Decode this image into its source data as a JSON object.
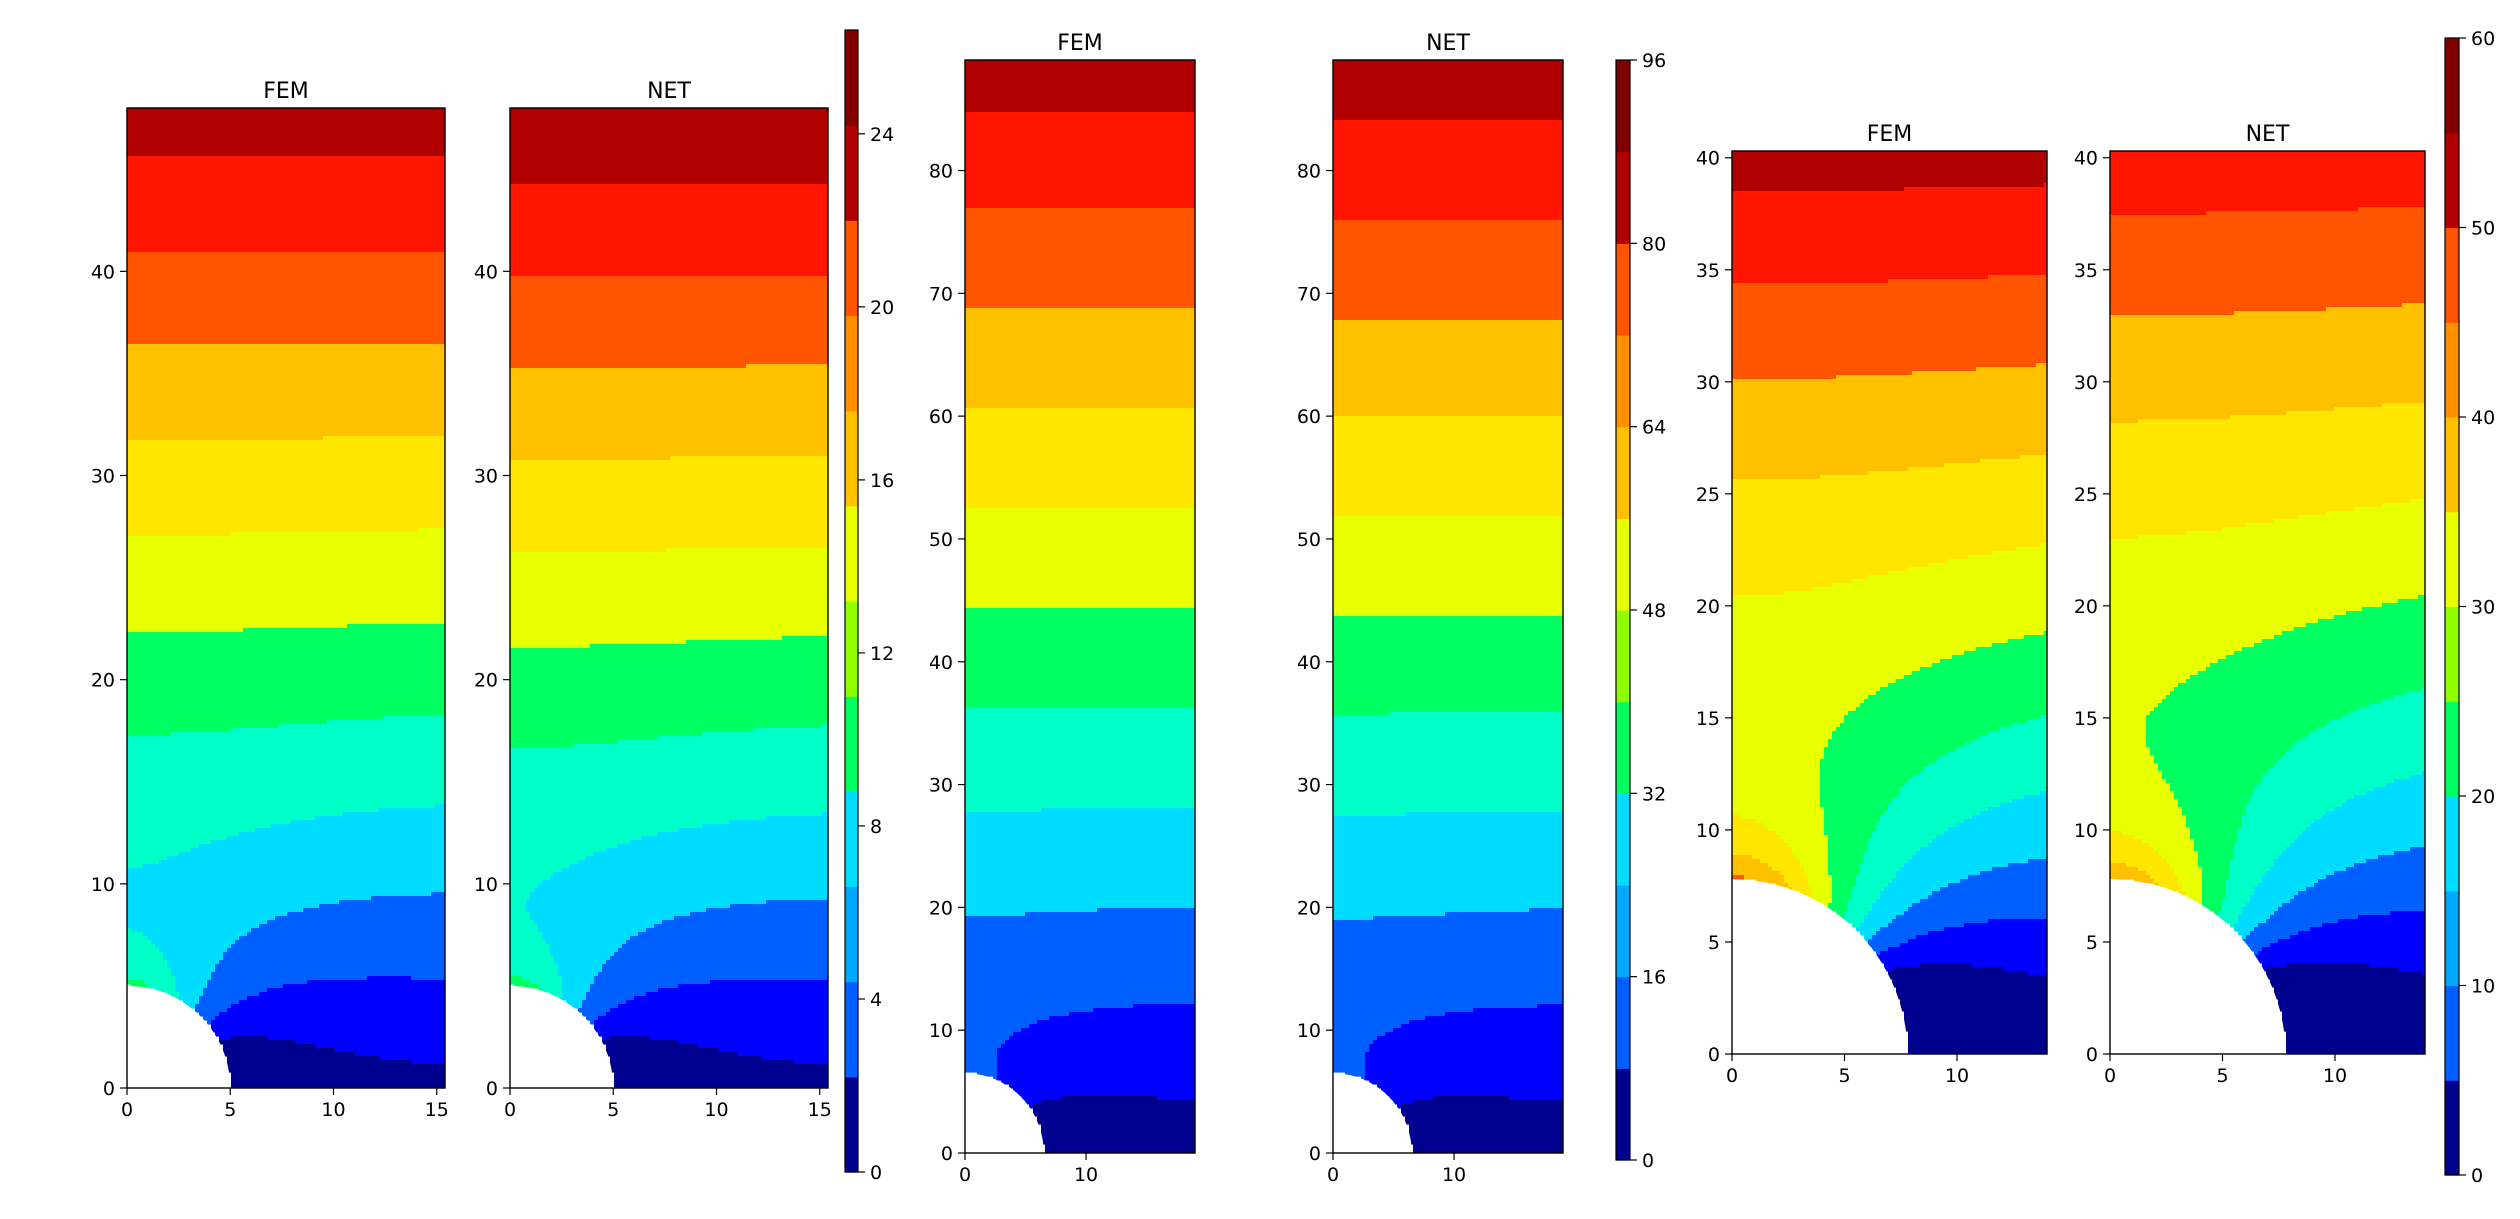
{
  "chart_data": [
    {
      "type": "heatmap",
      "group": 1,
      "title": "FEM",
      "xlim": [
        0,
        15.4
      ],
      "ylim": [
        0,
        48
      ],
      "x_ticks": [
        "0",
        "5",
        "10",
        "15"
      ],
      "y_ticks": [
        "0",
        "10",
        "20",
        "30",
        "40"
      ],
      "hole_radius": 5,
      "vmin": 0,
      "vmax": 26.4,
      "level_step": 2.2,
      "field": {
        "bottom": 2,
        "top": 25.3,
        "hole_peak": 9.3,
        "decay": 17
      }
    },
    {
      "type": "heatmap",
      "group": 1,
      "title": "NET",
      "xlim": [
        0,
        15.4
      ],
      "ylim": [
        0,
        48
      ],
      "x_ticks": [
        "0",
        "5",
        "10",
        "15"
      ],
      "y_ticks": [
        "0",
        "10",
        "20",
        "30",
        "40"
      ],
      "hole_radius": 5,
      "vmin": 0,
      "vmax": 26.4,
      "level_step": 2.2,
      "field": {
        "bottom": 2,
        "top": 26,
        "hole_peak": 9.6,
        "decay": 17
      }
    },
    {
      "type": "heatmap",
      "group": 2,
      "title": "FEM",
      "xlim": [
        0,
        19
      ],
      "ylim": [
        0,
        89
      ],
      "x_ticks": [
        "0",
        "10"
      ],
      "y_ticks": [
        "0",
        "10",
        "20",
        "30",
        "40",
        "50",
        "60",
        "70",
        "80"
      ],
      "hole_radius": 6.5,
      "vmin": 0,
      "vmax": 96,
      "level_step": 8,
      "field": {
        "bottom": 4,
        "top": 92,
        "hole_peak": 12,
        "decay": 22
      }
    },
    {
      "type": "heatmap",
      "group": 2,
      "title": "NET",
      "xlim": [
        0,
        19
      ],
      "ylim": [
        0,
        89
      ],
      "x_ticks": [
        "0",
        "10"
      ],
      "y_ticks": [
        "0",
        "10",
        "20",
        "30",
        "40",
        "50",
        "60",
        "70",
        "80"
      ],
      "hole_radius": 6.5,
      "vmin": 0,
      "vmax": 96,
      "level_step": 8,
      "field": {
        "bottom": 4,
        "top": 93,
        "hole_peak": 12,
        "decay": 22
      }
    },
    {
      "type": "heatmap",
      "group": 3,
      "title": "FEM",
      "xlim": [
        0,
        14
      ],
      "ylim": [
        0,
        40.3
      ],
      "x_ticks": [
        "0",
        "5",
        "10"
      ],
      "y_ticks": [
        "0",
        "5",
        "10",
        "15",
        "20",
        "25",
        "30",
        "35",
        "40"
      ],
      "hole_radius": 7.8,
      "vmin": 0,
      "vmax": 60,
      "level_step": 5,
      "field": {
        "bottom": 4,
        "top": 56,
        "hole_peak": 36,
        "decay": 12
      }
    },
    {
      "type": "heatmap",
      "group": 3,
      "title": "NET",
      "xlim": [
        0,
        14
      ],
      "ylim": [
        0,
        40.3
      ],
      "x_ticks": [
        "0",
        "5",
        "10"
      ],
      "y_ticks": [
        "0",
        "5",
        "10",
        "15",
        "20",
        "25",
        "30",
        "35",
        "40"
      ],
      "hole_radius": 7.8,
      "vmin": 0,
      "vmax": 60,
      "level_step": 5,
      "field": {
        "bottom": 4,
        "top": 52,
        "hole_peak": 35,
        "decay": 12
      }
    }
  ],
  "colorbars": [
    {
      "group": 1,
      "range": [
        0,
        26.4
      ],
      "levels": 12,
      "ticks": [
        "0",
        "4",
        "8",
        "12",
        "16",
        "20",
        "24"
      ]
    },
    {
      "group": 2,
      "range": [
        0,
        96
      ],
      "levels": 12,
      "ticks": [
        "0",
        "16",
        "32",
        "48",
        "64",
        "80",
        "96"
      ]
    },
    {
      "group": 3,
      "range": [
        0,
        60
      ],
      "levels": 12,
      "ticks": [
        "0",
        "10",
        "20",
        "30",
        "40",
        "50",
        "60"
      ]
    }
  ],
  "colormap": [
    "#00008f",
    "#0000ff",
    "#0060ff",
    "#00a8ff",
    "#00dcff",
    "#00ffc8",
    "#00ff60",
    "#90ff00",
    "#e8ff00",
    "#ffe600",
    "#ffc000",
    "#ff9000",
    "#ff5500",
    "#ff1500",
    "#b00000",
    "#800000"
  ]
}
